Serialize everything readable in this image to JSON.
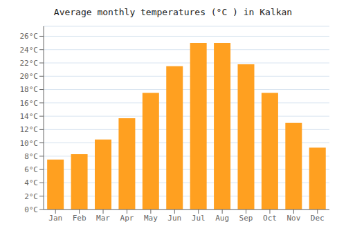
{
  "chart_data": {
    "type": "bar",
    "title": "Average monthly temperatures (°C ) in Kalkan",
    "categories": [
      "Jan",
      "Feb",
      "Mar",
      "Apr",
      "May",
      "Jun",
      "Jul",
      "Aug",
      "Sep",
      "Oct",
      "Nov",
      "Dec"
    ],
    "values": [
      7.5,
      8.3,
      10.5,
      13.7,
      17.5,
      21.5,
      25.0,
      25.0,
      21.8,
      17.5,
      13.0,
      9.3
    ],
    "color": "#FFA020",
    "ylim": [
      0,
      27.5
    ],
    "yticks": [
      {
        "value": 0,
        "label": "0°C"
      },
      {
        "value": 2,
        "label": "2°C"
      },
      {
        "value": 4,
        "label": "4°C"
      },
      {
        "value": 6,
        "label": "6°C"
      },
      {
        "value": 8,
        "label": "8°C"
      },
      {
        "value": 10,
        "label": "10°C"
      },
      {
        "value": 12,
        "label": "12°C"
      },
      {
        "value": 14,
        "label": "14°C"
      },
      {
        "value": 16,
        "label": "16°C"
      },
      {
        "value": 18,
        "label": "18°C"
      },
      {
        "value": 20,
        "label": "20°C"
      },
      {
        "value": 22,
        "label": "22°C"
      },
      {
        "value": 24,
        "label": "24°C"
      },
      {
        "value": 26,
        "label": "26°C"
      }
    ],
    "grid": true
  }
}
